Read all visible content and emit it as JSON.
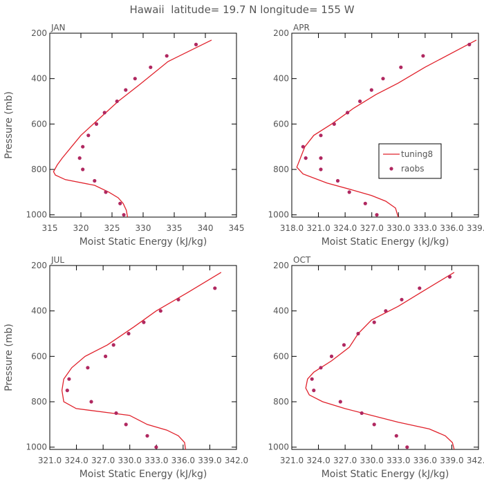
{
  "figure_title": "Hawaii  latitude= 19.7 N longitude= 155 W",
  "legend": {
    "line_label": "tuning8",
    "marker_label": "raobs"
  },
  "colors": {
    "model_line": "#e0202a",
    "obs_marker": "#b02860",
    "axis": "#000000",
    "text": "#555555"
  },
  "chart_data": [
    {
      "type": "line",
      "panel": "JAN",
      "title": "JAN",
      "xlabel": "Moist Static Energy (kJ/kg)",
      "ylabel": "Pressure (mb)",
      "xlim": [
        315,
        345
      ],
      "ylim": [
        1010,
        200
      ],
      "xticks": [
        315,
        320,
        325,
        330,
        335,
        340,
        345
      ],
      "xtick_labels": [
        "315",
        "320",
        "325",
        "330",
        "335",
        "340",
        "345"
      ],
      "yticks": [
        200,
        400,
        600,
        800,
        1000
      ],
      "ytick_labels": [
        "200",
        "400",
        "600",
        "800",
        "1000"
      ],
      "show_ylabel": true,
      "show_legend": false,
      "series": [
        {
          "name": "tuning8",
          "kind": "line",
          "x": [
            327.5,
            327.3,
            326.8,
            326.0,
            324.5,
            322.2,
            317.5,
            315.9,
            315.6,
            316.2,
            317.0,
            318.5,
            320.0,
            323.0,
            326.0,
            329.5,
            334.0,
            341.0
          ],
          "y": [
            1010,
            980,
            950,
            925,
            900,
            870,
            845,
            825,
            810,
            780,
            750,
            700,
            650,
            575,
            500,
            425,
            325,
            230
          ]
        },
        {
          "name": "raobs",
          "kind": "scatter",
          "x": [
            326.9,
            326.3,
            324.0,
            322.2,
            320.3,
            319.8,
            320.3,
            321.2,
            322.5,
            323.8,
            325.8,
            327.2,
            328.7,
            331.2,
            333.8,
            338.5
          ],
          "y": [
            1000,
            950,
            900,
            850,
            800,
            750,
            700,
            650,
            600,
            550,
            500,
            450,
            400,
            350,
            300,
            250
          ]
        }
      ]
    },
    {
      "type": "line",
      "panel": "APR",
      "title": "APR",
      "xlabel": "Moist Static Energy (kJ/kg)",
      "ylabel": "Pressure (mb)",
      "xlim": [
        318.03,
        339.03
      ],
      "ylim": [
        1010,
        200
      ],
      "xticks": [
        318.03,
        321.03,
        324.03,
        327.03,
        330.03,
        333.03,
        336.03,
        339.03
      ],
      "xtick_labels": [
        "318.0",
        "321.0",
        "324.0",
        "327.0",
        "330.0",
        "333.0",
        "336.0",
        "339.0"
      ],
      "yticks": [
        200,
        400,
        600,
        800,
        1000
      ],
      "ytick_labels": [
        "200",
        "400",
        "600",
        "800",
        "1000"
      ],
      "show_ylabel": false,
      "show_legend": true,
      "series": [
        {
          "name": "tuning8",
          "kind": "line",
          "x": [
            330.0,
            329.7,
            328.6,
            327.0,
            324.8,
            322.0,
            319.3,
            318.6,
            318.9,
            319.5,
            320.5,
            322.5,
            325.0,
            327.5,
            330.0,
            333.0,
            338.8
          ],
          "y": [
            1010,
            970,
            940,
            915,
            890,
            860,
            820,
            790,
            760,
            700,
            650,
            600,
            530,
            470,
            420,
            350,
            230
          ]
        },
        {
          "name": "raobs",
          "kind": "scatter",
          "x": [
            327.6,
            326.3,
            324.5,
            323.2,
            321.3,
            321.3,
            319.6,
            319.3,
            321.3,
            322.8,
            324.3,
            325.7,
            327.0,
            328.3,
            330.3,
            332.8,
            338.0
          ],
          "y": [
            1000,
            950,
            900,
            850,
            800,
            750,
            750,
            700,
            650,
            600,
            550,
            500,
            450,
            400,
            350,
            300,
            250
          ]
        }
      ]
    },
    {
      "type": "line",
      "panel": "JUL",
      "title": "JUL",
      "xlabel": "Moist Static Energy (kJ/kg)",
      "ylabel": "Pressure (mb)",
      "xlim": [
        321.03,
        342.03
      ],
      "ylim": [
        1010,
        200
      ],
      "xticks": [
        321.03,
        324.03,
        327.03,
        330.03,
        333.03,
        336.03,
        339.03,
        342.03
      ],
      "xtick_labels": [
        "321.0",
        "324.0",
        "327.0",
        "330.0",
        "333.0",
        "336.0",
        "339.0",
        "342.0"
      ],
      "yticks": [
        200,
        400,
        600,
        800,
        1000
      ],
      "ytick_labels": [
        "200",
        "400",
        "600",
        "800",
        "1000"
      ],
      "show_ylabel": true,
      "show_legend": false,
      "series": [
        {
          "name": "tuning8",
          "kind": "line",
          "x": [
            336.3,
            336.2,
            335.5,
            334.2,
            332.0,
            331.0,
            330.0,
            328.0,
            324.0,
            322.6,
            322.4,
            322.6,
            323.5,
            325.0,
            327.5,
            330.5,
            333.0,
            336.5,
            340.3
          ],
          "y": [
            1010,
            980,
            950,
            925,
            900,
            880,
            860,
            850,
            830,
            800,
            750,
            700,
            650,
            600,
            550,
            470,
            400,
            320,
            230
          ]
        },
        {
          "name": "raobs",
          "kind": "scatter",
          "x": [
            333.0,
            332.0,
            329.6,
            328.5,
            325.7,
            323.0,
            323.2,
            325.3,
            327.3,
            328.2,
            329.9,
            331.6,
            333.5,
            335.5,
            339.6
          ],
          "y": [
            1000,
            950,
            900,
            850,
            800,
            750,
            700,
            650,
            600,
            550,
            500,
            450,
            400,
            350,
            300
          ]
        }
      ]
    },
    {
      "type": "line",
      "panel": "OCT",
      "title": "OCT",
      "xlabel": "Moist Static Energy (kJ/kg)",
      "ylabel": "Pressure (mb)",
      "xlim": [
        321.03,
        342.03
      ],
      "ylim": [
        1010,
        200
      ],
      "xticks": [
        321.03,
        324.03,
        327.03,
        330.03,
        333.03,
        336.03,
        339.03,
        342.03
      ],
      "xtick_labels": [
        "321.0",
        "324.0",
        "327.0",
        "330.0",
        "333.0",
        "336.0",
        "339.0",
        "342.0"
      ],
      "yticks": [
        200,
        400,
        600,
        800,
        1000
      ],
      "ytick_labels": [
        "200",
        "400",
        "600",
        "800",
        "1000"
      ],
      "show_ylabel": false,
      "show_legend": false,
      "series": [
        {
          "name": "tuning8",
          "kind": "line",
          "x": [
            339.3,
            339.1,
            338.3,
            336.5,
            333.0,
            330.0,
            327.0,
            324.5,
            323.0,
            322.6,
            322.8,
            323.5,
            325.5,
            327.5,
            328.5,
            330.0,
            333.0,
            335.5,
            339.3
          ],
          "y": [
            1010,
            980,
            950,
            920,
            890,
            860,
            830,
            800,
            770,
            740,
            700,
            670,
            620,
            560,
            500,
            440,
            380,
            320,
            230
          ]
        },
        {
          "name": "raobs",
          "kind": "scatter",
          "x": [
            334.0,
            332.8,
            330.3,
            328.9,
            326.5,
            323.5,
            323.3,
            324.3,
            325.5,
            326.9,
            328.5,
            330.3,
            331.6,
            333.4,
            335.4,
            338.8
          ],
          "y": [
            1000,
            950,
            900,
            850,
            800,
            750,
            700,
            650,
            600,
            550,
            500,
            450,
            400,
            350,
            300,
            250
          ]
        }
      ]
    }
  ]
}
